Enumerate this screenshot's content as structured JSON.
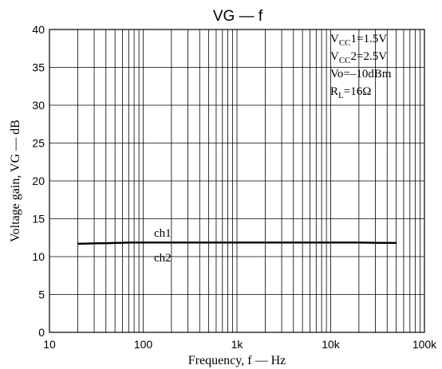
{
  "chart_data": {
    "type": "line",
    "title": "VG — f",
    "xlabel": "Frequency, f — Hz",
    "ylabel": "Voltage gain, VG — dB",
    "xscale": "log",
    "xlim": [
      10,
      100000
    ],
    "ylim": [
      0,
      40
    ],
    "grid": true,
    "x_ticks": [
      10,
      100,
      1000,
      10000,
      100000
    ],
    "x_tick_labels": [
      "10",
      "100",
      "1k",
      "10k",
      "100k"
    ],
    "y_ticks": [
      0,
      5,
      10,
      15,
      20,
      25,
      30,
      35,
      40
    ],
    "y_tick_labels": [
      "0",
      "5",
      "10",
      "15",
      "20",
      "25",
      "30",
      "35",
      "40"
    ],
    "series": [
      {
        "name": "ch1",
        "x": [
          20,
          30,
          50,
          70,
          100,
          200,
          500,
          1000,
          2000,
          5000,
          10000,
          20000,
          50000
        ],
        "y": [
          11.7,
          11.75,
          11.8,
          11.85,
          11.85,
          11.85,
          11.85,
          11.85,
          11.85,
          11.85,
          11.85,
          11.85,
          11.8
        ]
      },
      {
        "name": "ch2",
        "x": [
          20,
          30,
          50,
          70,
          100,
          200,
          500,
          1000,
          2000,
          5000,
          10000,
          20000,
          50000
        ],
        "y": [
          11.7,
          11.75,
          11.8,
          11.85,
          11.85,
          11.85,
          11.85,
          11.85,
          11.85,
          11.85,
          11.85,
          11.85,
          11.8
        ]
      }
    ],
    "conditions": [
      {
        "main": "V",
        "sub": "CC",
        "rest": "1=1.5V"
      },
      {
        "main": "V",
        "sub": "CC",
        "rest": "2=2.5V"
      },
      {
        "main": "Vo=–10dBm",
        "sub": "",
        "rest": ""
      },
      {
        "main": "R",
        "sub": "L",
        "rest": "=16Ω"
      }
    ],
    "line_color": "#000000"
  }
}
